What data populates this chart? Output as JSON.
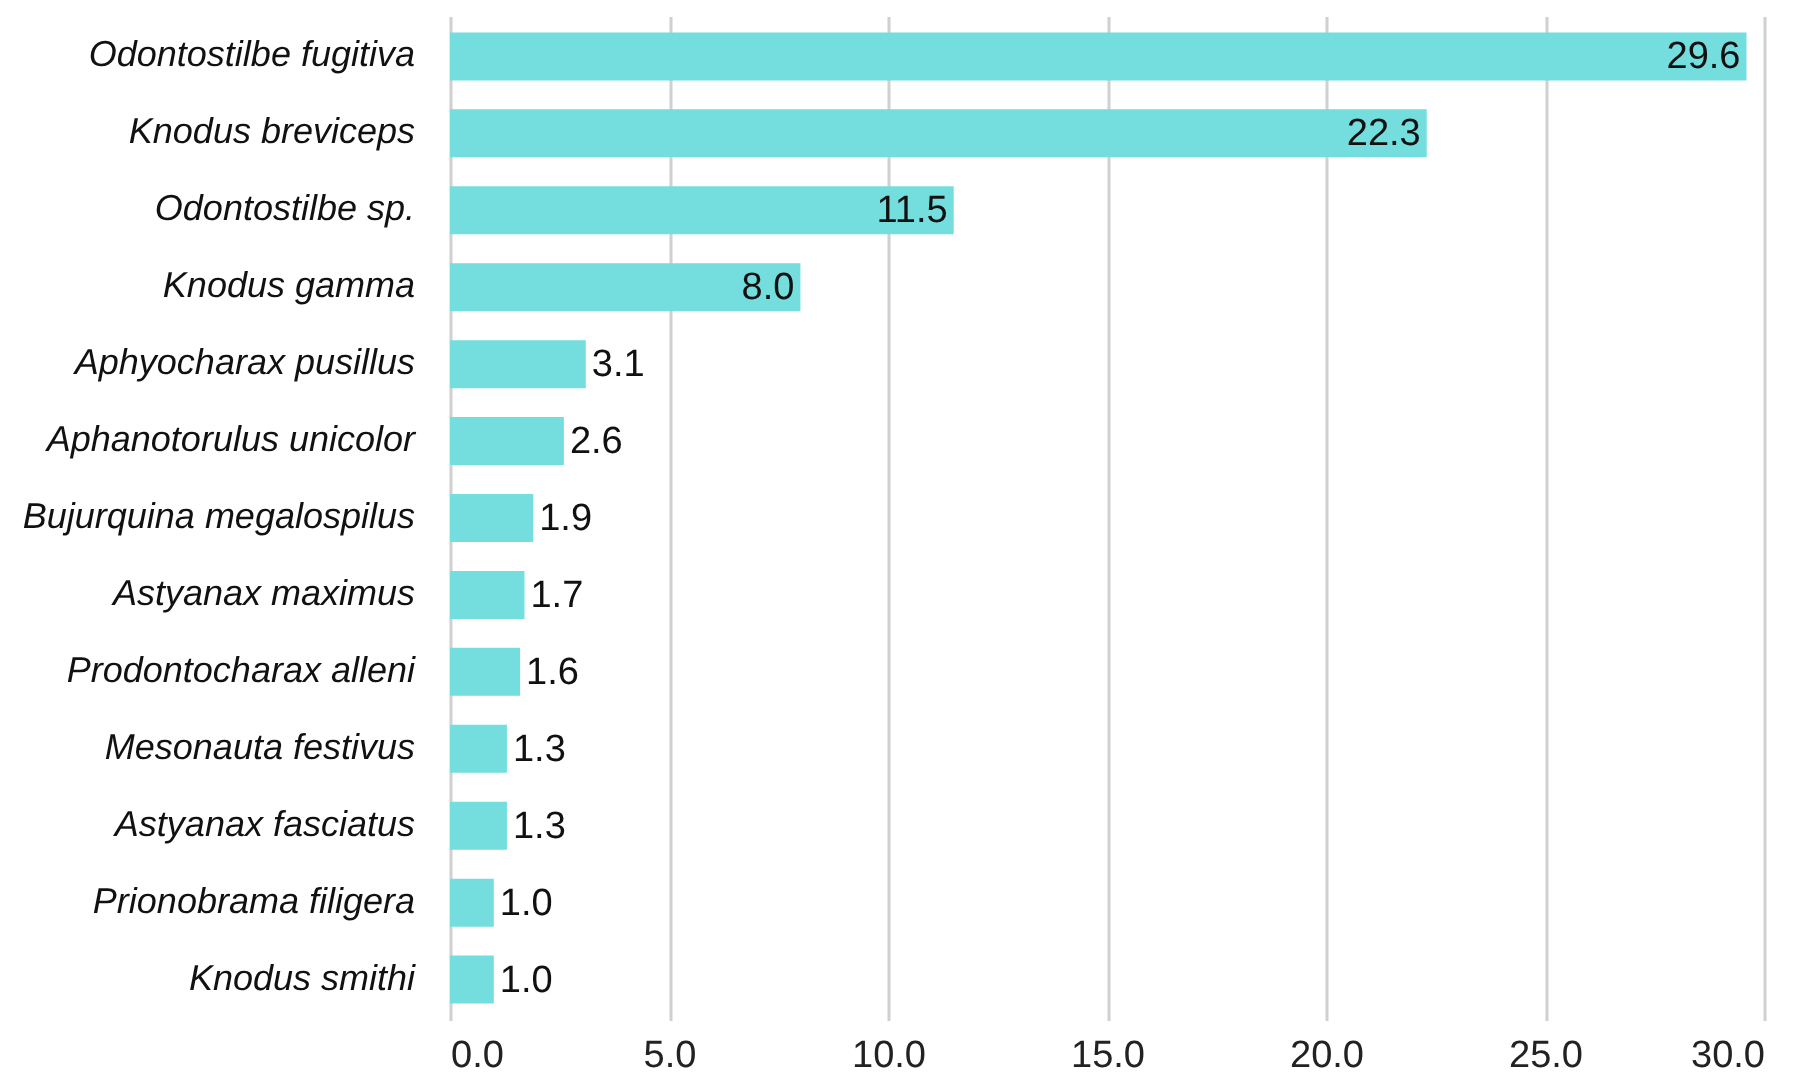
{
  "chart_data": {
    "type": "bar",
    "orientation": "horizontal",
    "categories": [
      "Odontostilbe fugitiva",
      "Knodus breviceps",
      "Odontostilbe sp.",
      "Knodus gamma",
      "Aphyocharax pusillus",
      "Aphanotorulus unicolor",
      "Bujurquina megalospilus",
      "Astyanax maximus",
      "Prodontocharax alleni",
      "Mesonauta festivus",
      "Astyanax fasciatus",
      "Prionobrama filigera",
      "Knodus smithi"
    ],
    "values": [
      29.6,
      22.3,
      11.5,
      8.0,
      3.1,
      2.6,
      1.9,
      1.7,
      1.6,
      1.3,
      1.3,
      1.0,
      1.0
    ],
    "value_labels": [
      "29.6",
      "22.3",
      "11.5",
      "8.0",
      "3.1",
      "2.6",
      "1.9",
      "1.7",
      "1.6",
      "1.3",
      "1.3",
      "1.0",
      "1.0"
    ],
    "color": "#74dede",
    "xlim": [
      0,
      30
    ],
    "xticks": [
      {
        "value": 0,
        "label": "0.0"
      },
      {
        "value": 5,
        "label": "5.0"
      },
      {
        "value": 10,
        "label": "10.0"
      },
      {
        "value": 15,
        "label": "15.0"
      },
      {
        "value": 20,
        "label": "20.0"
      },
      {
        "value": 25,
        "label": "25.0"
      },
      {
        "value": 30,
        "label": "30.0"
      }
    ],
    "grid": "x"
  }
}
